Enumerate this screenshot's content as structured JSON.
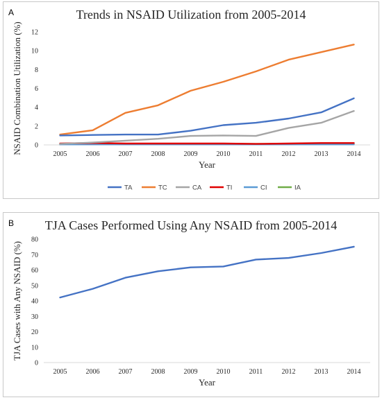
{
  "chart_data": [
    {
      "panel": "A",
      "type": "line",
      "title": "Trends in NSAID Utilization from 2005-2014",
      "xlabel": "Year",
      "ylabel": "NSAID Combination Utilization (%)",
      "ylim": [
        0,
        12
      ],
      "yticks": [
        0,
        2,
        4,
        6,
        8,
        10,
        12
      ],
      "grid": false,
      "legend": "bottom",
      "categories": [
        "2005",
        "2006",
        "2007",
        "2008",
        "2009",
        "2010",
        "2011",
        "2012",
        "2013",
        "2014"
      ],
      "series": [
        {
          "name": "TA",
          "color": "#4472C4",
          "values": [
            1.0,
            1.05,
            1.1,
            1.1,
            1.5,
            2.1,
            2.35,
            2.8,
            3.45,
            4.95
          ]
        },
        {
          "name": "TC",
          "color": "#ED7D31",
          "values": [
            1.1,
            1.55,
            3.4,
            4.2,
            5.75,
            6.7,
            7.8,
            9.05,
            9.85,
            10.65
          ]
        },
        {
          "name": "CA",
          "color": "#A5A5A5",
          "values": [
            0.1,
            0.25,
            0.45,
            0.65,
            0.95,
            1.0,
            0.95,
            1.8,
            2.35,
            3.6
          ]
        },
        {
          "name": "TI",
          "color": "#E00000",
          "values": [
            0.15,
            0.2,
            0.15,
            0.15,
            0.15,
            0.15,
            0.1,
            0.15,
            0.2,
            0.2
          ]
        },
        {
          "name": "CI",
          "color": "#5B9BD5",
          "values": [
            0.05,
            0.05,
            0.05,
            0.05,
            0.05,
            0.05,
            0.05,
            0.05,
            0.05,
            0.05
          ]
        },
        {
          "name": "IA",
          "color": "#70AD47",
          "values": [
            0.05,
            0.1,
            0.1,
            0.1,
            0.1,
            0.1,
            0.1,
            0.1,
            0.1,
            0.15
          ]
        }
      ]
    },
    {
      "panel": "B",
      "type": "line",
      "title": "TJA Cases Performed Using Any NSAID from 2005-2014",
      "xlabel": "Year",
      "ylabel": "TJA Cases with Any NSAID (%)",
      "ylim": [
        0,
        80
      ],
      "yticks": [
        0,
        10,
        20,
        30,
        40,
        50,
        60,
        70,
        80
      ],
      "grid": false,
      "categories": [
        "2005",
        "2006",
        "2007",
        "2008",
        "2009",
        "2010",
        "2011",
        "2012",
        "2013",
        "2014"
      ],
      "series": [
        {
          "color": "#4472C4",
          "values": [
            42.2,
            47.8,
            55.0,
            59.2,
            61.7,
            62.3,
            66.8,
            67.8,
            71.0,
            75.1
          ]
        }
      ]
    }
  ]
}
